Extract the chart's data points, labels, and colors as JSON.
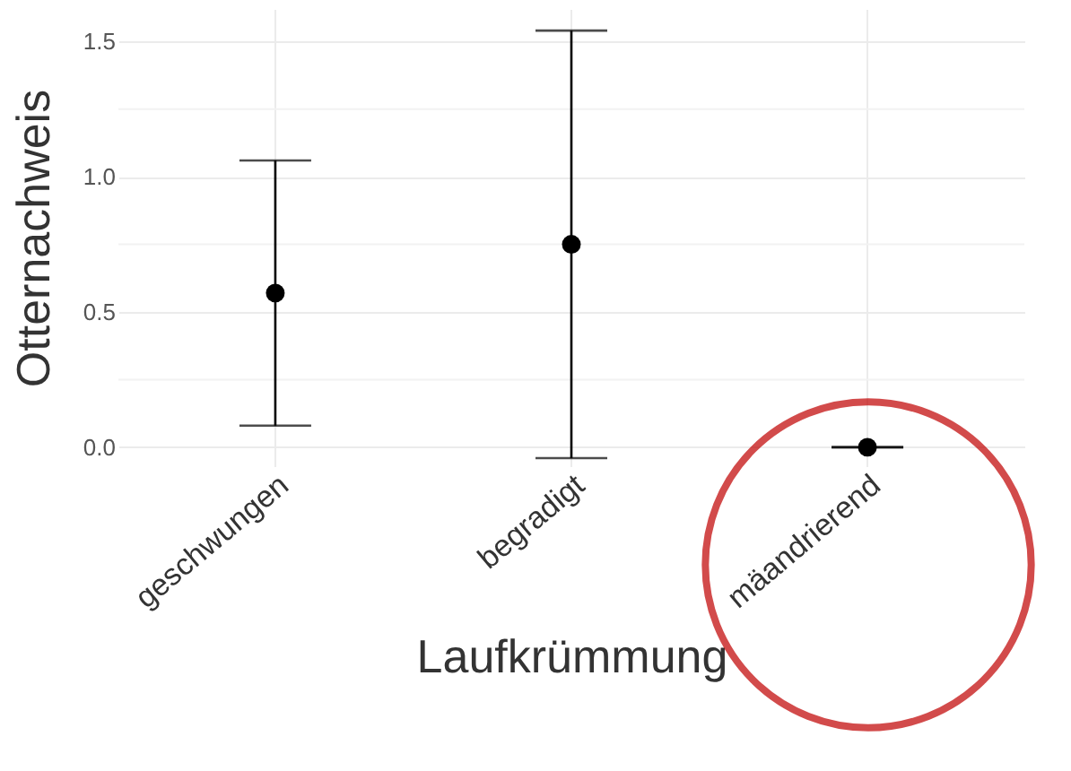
{
  "chart_data": {
    "type": "scatter",
    "xlabel": "Laufkrümmung",
    "ylabel": "Otternachweis",
    "categories": [
      "geschwungen",
      "begradigt",
      "mäandrierend"
    ],
    "values": [
      0.57,
      0.75,
      0.0
    ],
    "errors": [
      [
        0.08,
        1.06
      ],
      [
        -0.04,
        1.54
      ],
      [
        0.0,
        0.0
      ]
    ],
    "color": "#000000",
    "marker": "circle",
    "ylim": [
      -0.07,
      1.62
    ],
    "yticks": [
      {
        "value": 0,
        "label": "0.0"
      },
      {
        "value": 0.5,
        "label": "0.5"
      },
      {
        "value": 1,
        "label": "1.0"
      },
      {
        "value": 1.5,
        "label": "1.5"
      }
    ],
    "grid": true
  }
}
